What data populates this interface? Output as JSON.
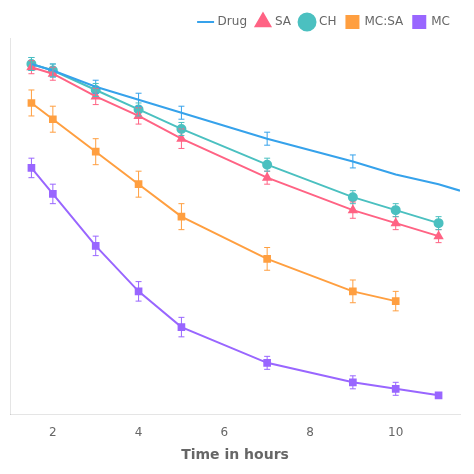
{
  "chart_data": {
    "type": "line",
    "xlabel": "Time in hours",
    "xlim": [
      1.0,
      11.5
    ],
    "ylim": [
      -8,
      108
    ],
    "xticks": [
      2,
      4,
      6,
      8,
      10
    ],
    "grid": false,
    "legend": "upper right",
    "tick_labels": "x",
    "series": [
      {
        "name": "Drug",
        "marker": "none",
        "line_style": "solid",
        "x": [
          1.5,
          2,
          3,
          4,
          5,
          7,
          9,
          9.5,
          10,
          11,
          11.5
        ],
        "values": [
          100,
          98,
          93,
          89,
          85,
          77,
          70,
          68,
          66,
          63,
          61
        ],
        "yerr": [
          2,
          2,
          2,
          2,
          2,
          2,
          2,
          0,
          0,
          0,
          0
        ]
      },
      {
        "name": "SA",
        "marker": "triangle",
        "line_style": "solid",
        "x": [
          1.5,
          2,
          3,
          4,
          5,
          7,
          9,
          10,
          11
        ],
        "values": [
          99,
          97,
          90,
          84,
          77,
          65,
          55,
          51,
          47
        ],
        "yerr": [
          2,
          2,
          2.5,
          2.5,
          3,
          2,
          2.5,
          2,
          2
        ]
      },
      {
        "name": "CH",
        "marker": "circle",
        "line_style": "solid",
        "x": [
          1.5,
          2,
          3,
          4,
          5,
          7,
          9,
          10,
          11
        ],
        "values": [
          100,
          98,
          92,
          86,
          80,
          69,
          59,
          55,
          51
        ],
        "yerr": [
          2,
          2,
          2,
          2,
          2,
          2,
          2,
          2,
          2
        ]
      },
      {
        "name": "MC:SA",
        "marker": "square",
        "line_style": "solid",
        "x": [
          1.5,
          2,
          3,
          4,
          5,
          7,
          9,
          10
        ],
        "values": [
          88,
          83,
          73,
          63,
          53,
          40,
          30,
          27
        ],
        "yerr": [
          4,
          4,
          4,
          4,
          4,
          3.5,
          3.5,
          3
        ]
      },
      {
        "name": "MC",
        "marker": "square",
        "line_style": "solid",
        "x": [
          1.5,
          2,
          3,
          4,
          5,
          7,
          9,
          10,
          11
        ],
        "values": [
          68,
          60,
          44,
          30,
          19,
          8,
          2,
          0,
          -2
        ],
        "yerr": [
          3,
          3,
          3,
          3,
          3,
          2,
          2,
          2,
          0
        ]
      }
    ]
  }
}
